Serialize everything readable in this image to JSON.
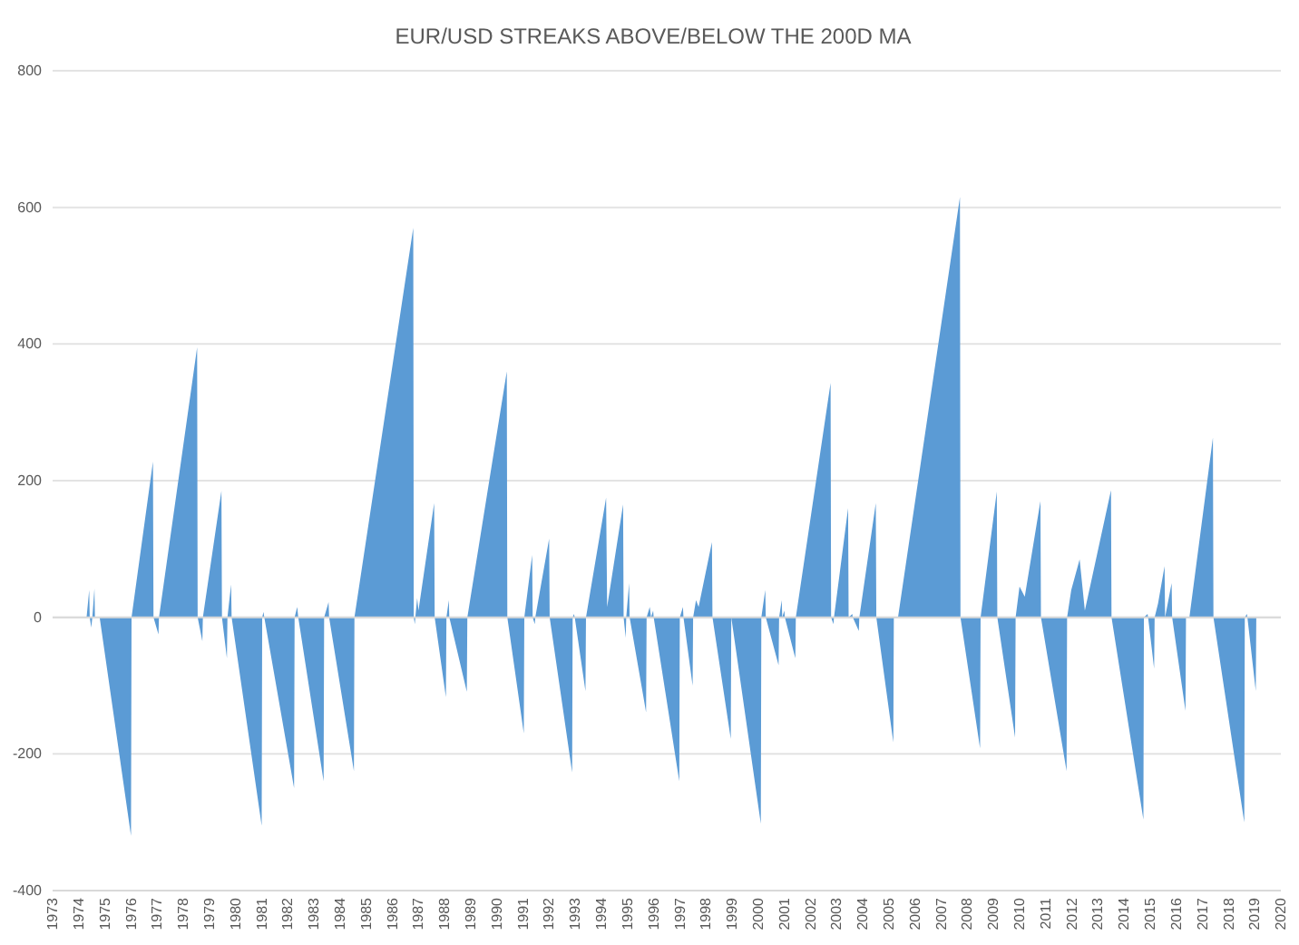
{
  "chart_data": {
    "type": "area",
    "title": "EUR/USD STREAKS ABOVE/BELOW THE 200D MA",
    "x": [
      1973,
      1974.3,
      1974.4,
      1974.42,
      1974.48,
      1974.52,
      1974.6,
      1974.62,
      1974.8,
      1976.0,
      1976.02,
      1976.84,
      1976.86,
      1977.05,
      1977.07,
      1978.53,
      1978.55,
      1978.73,
      1978.75,
      1979.46,
      1979.48,
      1979.67,
      1979.69,
      1979.83,
      1979.85,
      1981.0,
      1981.02,
      1981.07,
      1981.1,
      1982.24,
      1982.26,
      1982.36,
      1982.4,
      1983.37,
      1983.39,
      1983.56,
      1983.58,
      1984.53,
      1984.55,
      1986.8,
      1986.82,
      1986.86,
      1986.88,
      1986.95,
      1987.0,
      1987.6,
      1987.62,
      1988.05,
      1988.07,
      1988.16,
      1988.18,
      1988.85,
      1988.87,
      1990.38,
      1990.4,
      1991.03,
      1991.05,
      1991.35,
      1991.37,
      1991.45,
      1991.47,
      1992.0,
      1992.02,
      1992.88,
      1992.9,
      1992.95,
      1992.98,
      1993.39,
      1993.41,
      1994.18,
      1994.22,
      1994.83,
      1994.85,
      1994.93,
      1994.95,
      1995.06,
      1995.08,
      1995.71,
      1995.73,
      1995.85,
      1995.9,
      1995.98,
      1996.0,
      1996.98,
      1997.0,
      1997.12,
      1997.14,
      1997.49,
      1997.51,
      1997.62,
      1997.72,
      1998.23,
      1998.25,
      1998.95,
      1998.97,
      2000.1,
      2000.12,
      2000.27,
      2000.29,
      2000.78,
      2000.8,
      2000.9,
      2000.92,
      2001.0,
      2001.02,
      2001.42,
      2001.44,
      2002.77,
      2002.79,
      2002.88,
      2002.9,
      2003.44,
      2003.46,
      2003.6,
      2003.62,
      2003.85,
      2003.87,
      2004.5,
      2004.52,
      2005.17,
      2005.19,
      2005.35,
      2007.72,
      2007.74,
      2008.49,
      2008.51,
      2009.13,
      2009.15,
      2009.83,
      2009.85,
      2010.0,
      2010.2,
      2010.8,
      2010.82,
      2011.8,
      2011.82,
      2011.98,
      2012.3,
      2012.5,
      2013.5,
      2013.52,
      2014.74,
      2014.76,
      2014.9,
      2014.92,
      2015.15,
      2015.17,
      2015.3,
      2015.55,
      2015.57,
      2015.82,
      2015.84,
      2016.35,
      2016.37,
      2016.5,
      2017.4,
      2017.42,
      2018.6,
      2018.62,
      2018.7,
      2018.72,
      2019.04,
      2019.06
    ],
    "values": [
      0,
      0,
      40,
      0,
      -15,
      0,
      42,
      0,
      0,
      -320,
      0,
      228,
      0,
      -25,
      0,
      395,
      0,
      -35,
      0,
      185,
      0,
      -60,
      0,
      48,
      0,
      -305,
      0,
      8,
      0,
      -250,
      0,
      15,
      0,
      -240,
      0,
      22,
      0,
      -225,
      0,
      570,
      0,
      -10,
      0,
      28,
      10,
      167,
      0,
      -117,
      0,
      25,
      0,
      -109,
      0,
      360,
      0,
      -170,
      0,
      91,
      0,
      -10,
      0,
      115,
      0,
      -227,
      0,
      5,
      0,
      -108,
      0,
      175,
      15,
      165,
      0,
      -30,
      0,
      50,
      0,
      -139,
      0,
      15,
      0,
      10,
      0,
      -240,
      0,
      15,
      0,
      -100,
      0,
      25,
      15,
      110,
      0,
      -178,
      0,
      -302,
      0,
      40,
      0,
      -70,
      0,
      25,
      0,
      10,
      0,
      -60,
      0,
      343,
      0,
      -10,
      0,
      160,
      0,
      5,
      0,
      -20,
      0,
      167,
      0,
      -183,
      0,
      0,
      615,
      0,
      -192,
      0,
      184,
      0,
      -176,
      0,
      45,
      30,
      170,
      0,
      -225,
      0,
      40,
      85,
      10,
      186,
      0,
      -296,
      0,
      5,
      0,
      -75,
      0,
      20,
      75,
      0,
      50,
      0,
      -137,
      0,
      0,
      263,
      0,
      -300,
      0,
      5,
      0,
      -108,
      0
    ],
    "color": "#5b9bd5",
    "xlim": [
      1973,
      2020
    ],
    "xticks": [
      1973,
      1974,
      1975,
      1976,
      1977,
      1978,
      1979,
      1980,
      1981,
      1982,
      1983,
      1984,
      1985,
      1986,
      1987,
      1988,
      1989,
      1990,
      1991,
      1992,
      1993,
      1994,
      1995,
      1996,
      1997,
      1998,
      1999,
      2000,
      2001,
      2002,
      2003,
      2004,
      2005,
      2006,
      2007,
      2008,
      2009,
      2010,
      2011,
      2012,
      2013,
      2014,
      2015,
      2016,
      2017,
      2018,
      2019,
      2020
    ],
    "ylim": [
      -400,
      800
    ],
    "yticks": [
      -400,
      -200,
      0,
      200,
      400,
      600,
      800
    ],
    "grid": "y"
  }
}
